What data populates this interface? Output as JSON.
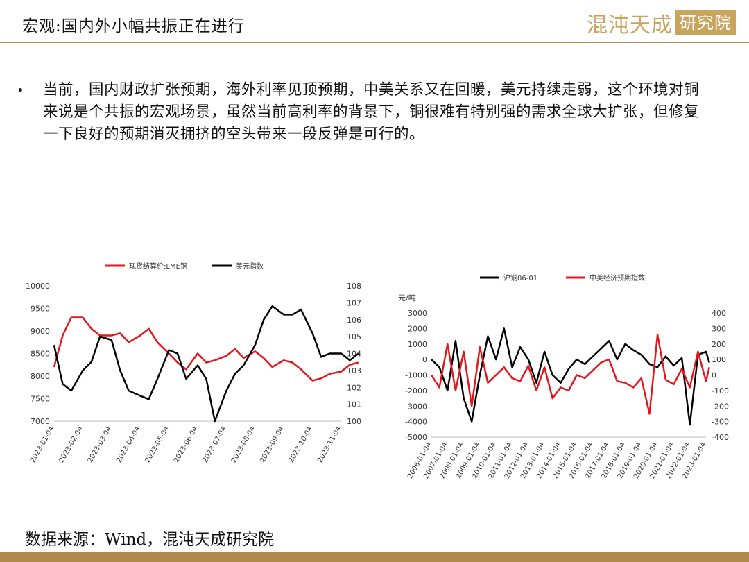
{
  "slide": {
    "title": "宏观:国内外小幅共振正在进行",
    "logo_text": "混沌天成",
    "logo_box_text": "研究院",
    "bullet": "当前，国内财政扩张预期，海外利率见顶预期，中美关系又在回暖，美元持续走弱，这个环境对铜来说是个共振的宏观场景，虽然当前高利率的背景下，铜很难有特别强的需求全球大扩张，但修复一下良好的预期消灭拥挤的空头带来一段反弹是可行的。",
    "source": "数据来源：Wind，混沌天成研究院"
  },
  "colors": {
    "accent_gold": "#b08a4a",
    "red": "#e8141b",
    "black": "#000000"
  },
  "chart_data": [
    {
      "type": "line",
      "legend": [
        "现货结算价:LME铜",
        "美元指数"
      ],
      "x_ticks": [
        "2023-01-04",
        "2023-02-04",
        "2023-03-04",
        "2023-04-04",
        "2023-05-04",
        "2023-06-04",
        "2023-07-04",
        "2023-08-04",
        "2023-09-04",
        "2023-10-04",
        "2023-11-04"
      ],
      "y_left_ticks": [
        "10000",
        "9500",
        "9000",
        "8500",
        "8000",
        "7500",
        "7000"
      ],
      "y_right_ticks": [
        "108",
        "107",
        "106",
        "105",
        "104",
        "103",
        "102",
        "101",
        "100"
      ],
      "ylim_left": [
        7000,
        10000
      ],
      "ylim_right": [
        100,
        108
      ],
      "series": [
        {
          "name": "现货结算价:LME铜",
          "axis": "left",
          "color": "#e8141b",
          "x": [
            0,
            0.3,
            0.6,
            1,
            1.3,
            1.6,
            2,
            2.3,
            2.6,
            3,
            3.3,
            3.6,
            4,
            4.3,
            4.6,
            5,
            5.3,
            5.6,
            6,
            6.3,
            6.6,
            7,
            7.3,
            7.6,
            8,
            8.3,
            8.6,
            9,
            9.3,
            9.6,
            10,
            10.3,
            10.6
          ],
          "values": [
            8200,
            8900,
            9300,
            9300,
            9050,
            8900,
            8900,
            8950,
            8750,
            8900,
            9050,
            8750,
            8500,
            8300,
            8150,
            8500,
            8300,
            8350,
            8450,
            8600,
            8400,
            8550,
            8400,
            8200,
            8350,
            8300,
            8150,
            7900,
            7950,
            8050,
            8100,
            8250,
            8300
          ]
        },
        {
          "name": "美元指数",
          "axis": "right",
          "color": "#000000",
          "x": [
            0,
            0.3,
            0.6,
            1,
            1.3,
            1.6,
            2,
            2.3,
            2.6,
            3,
            3.3,
            3.6,
            4,
            4.3,
            4.6,
            5,
            5.3,
            5.6,
            6,
            6.3,
            6.6,
            7,
            7.3,
            7.6,
            8,
            8.3,
            8.6,
            9,
            9.3,
            9.6,
            10,
            10.3,
            10.6
          ],
          "values": [
            104.5,
            102.2,
            101.8,
            103.0,
            103.5,
            105.0,
            104.8,
            103.0,
            101.8,
            101.5,
            101.3,
            102.5,
            104.2,
            104.0,
            102.5,
            103.3,
            102.5,
            100.0,
            101.8,
            102.8,
            103.3,
            104.5,
            106.0,
            106.8,
            106.3,
            106.3,
            106.6,
            105.2,
            103.8,
            104.0,
            104.0,
            103.6,
            104.0
          ]
        }
      ]
    },
    {
      "type": "line",
      "legend": [
        "沪铜06-01",
        "中美经济预期指数"
      ],
      "y_left_unit": "元/吨",
      "x_ticks": [
        "2006-01-04",
        "2007-01-04",
        "2008-01-04",
        "2009-01-04",
        "2010-01-04",
        "2011-01-04",
        "2012-01-04",
        "2013-01-04",
        "2014-01-04",
        "2015-01-04",
        "2016-01-04",
        "2017-01-04",
        "2018-01-04",
        "2019-01-04",
        "2020-01-04",
        "2021-01-04",
        "2022-01-04",
        "2023-01-04"
      ],
      "y_left_ticks": [
        "3000",
        "2000",
        "1000",
        "0",
        "-1000",
        "-2000",
        "-3000",
        "-4000",
        "-5000"
      ],
      "y_right_ticks": [
        "400",
        "300",
        "200",
        "100",
        "0",
        "-100",
        "-200",
        "-300",
        "-400"
      ],
      "ylim_left": [
        -5000,
        3000
      ],
      "ylim_right": [
        -400,
        400
      ],
      "series": [
        {
          "name": "沪铜06-01",
          "axis": "left",
          "color": "#000000",
          "x": [
            0,
            0.5,
            1,
            1.5,
            2,
            2.5,
            3,
            3.5,
            4,
            4.5,
            5,
            5.5,
            6,
            6.5,
            7,
            7.5,
            8,
            8.5,
            9,
            9.5,
            10,
            10.5,
            11,
            11.5,
            12,
            12.5,
            13,
            13.5,
            14,
            14.5,
            15,
            15.5,
            16,
            16.5,
            17,
            17.2
          ],
          "values": [
            0,
            -500,
            -2000,
            1200,
            -2500,
            -4000,
            -1000,
            1500,
            0,
            2000,
            -500,
            800,
            0,
            -1500,
            500,
            -1000,
            -1500,
            -600,
            0,
            -300,
            200,
            700,
            1200,
            0,
            1000,
            600,
            300,
            -300,
            -500,
            200,
            -400,
            100,
            -4200,
            300,
            500,
            -200
          ]
        },
        {
          "name": "中美经济预期指数",
          "axis": "right",
          "color": "#e8141b",
          "x": [
            0,
            0.5,
            1,
            1.5,
            2,
            2.5,
            3,
            3.5,
            4,
            4.5,
            5,
            5.5,
            6,
            6.5,
            7,
            7.5,
            8,
            8.5,
            9,
            9.5,
            10,
            10.5,
            11,
            11.5,
            12,
            12.5,
            13,
            13.5,
            14,
            14.5,
            15,
            15.5,
            16,
            16.5,
            17,
            17.2
          ],
          "values": [
            0,
            -80,
            200,
            -100,
            150,
            -200,
            180,
            -50,
            0,
            50,
            -20,
            -40,
            60,
            -100,
            50,
            -150,
            -80,
            -100,
            0,
            -20,
            30,
            80,
            100,
            -40,
            -50,
            -80,
            -20,
            -250,
            260,
            -30,
            -60,
            40,
            -80,
            150,
            -40,
            50
          ]
        }
      ]
    }
  ]
}
